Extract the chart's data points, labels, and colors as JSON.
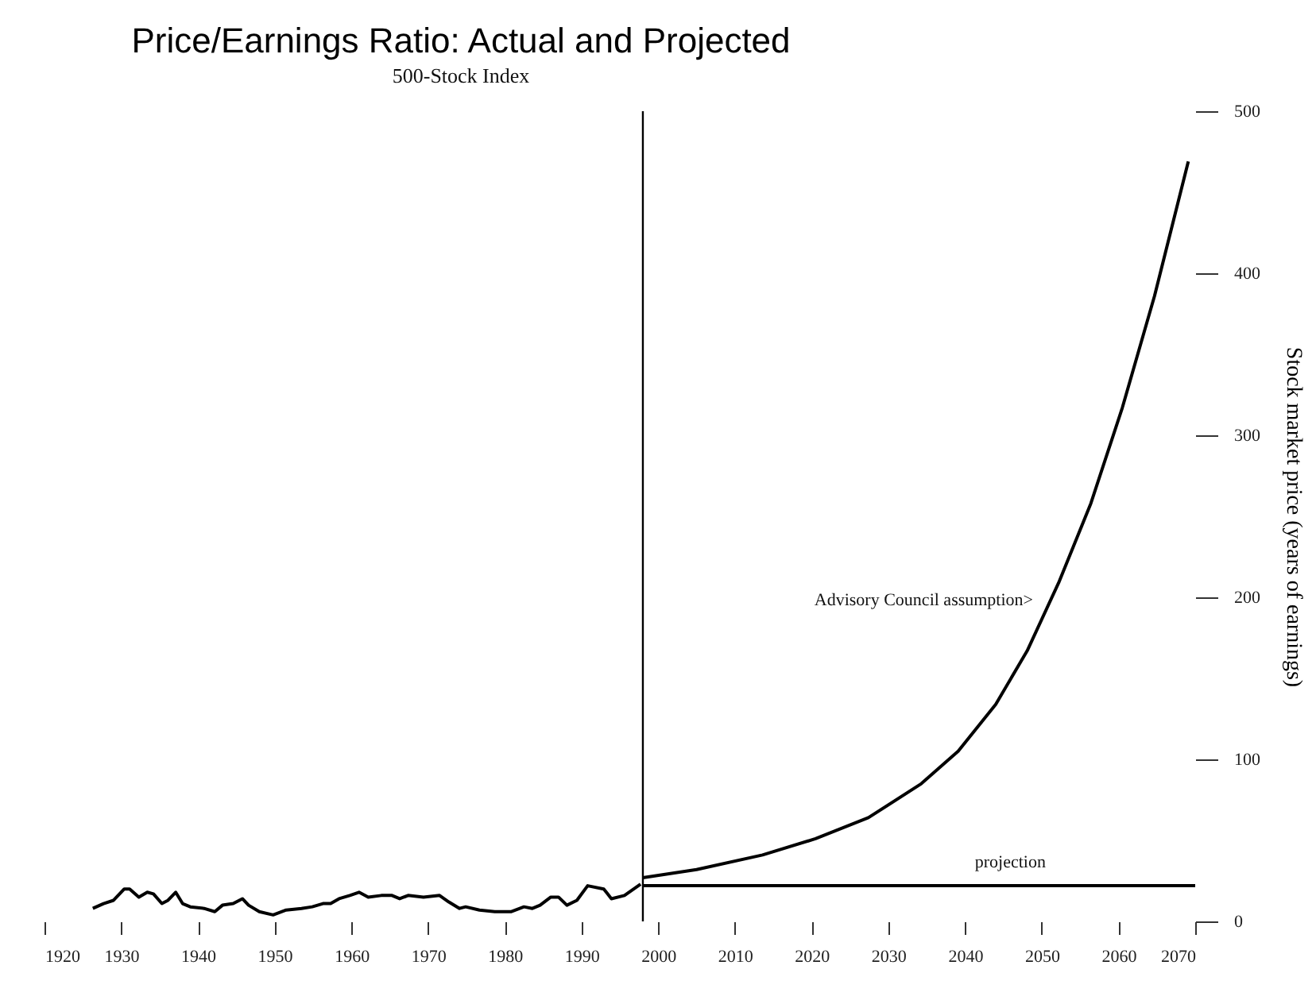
{
  "chart_data": {
    "type": "line",
    "title": "Price/Earnings Ratio: Actual and Projected",
    "subtitle": "500-Stock Index",
    "ylabel": "Stock market price (years of earnings)",
    "xlim": [
      1920,
      2070
    ],
    "xticks": [
      1920,
      1930,
      1940,
      1950,
      1960,
      1970,
      1980,
      1990,
      2000,
      2010,
      2020,
      2030,
      2040,
      2050,
      2060,
      2070
    ],
    "ylim": [
      0,
      500
    ],
    "yticks": [
      0,
      100,
      200,
      300,
      400,
      500
    ],
    "grid": false,
    "marker": "none",
    "line_style": "solid",
    "series": [
      {
        "color": "#000000",
        "x": [
          1926.3,
          1927.7,
          1929.0,
          1930.4,
          1931.1,
          1932.3,
          1933.4,
          1934.2,
          1935.3,
          1936.1,
          1937.1,
          1938.0,
          1939.0,
          1940.8,
          1942.2,
          1943.2,
          1944.6,
          1945.8,
          1946.6,
          1948.0,
          1949.8,
          1951.5,
          1953.5,
          1954.9,
          1956.3,
          1957.3,
          1958.4,
          1959.8,
          1961.0,
          1962.2,
          1963.9,
          1965.3,
          1966.3,
          1967.4,
          1969.4,
          1971.5,
          1972.7,
          1974.1,
          1974.9,
          1976.7,
          1978.7,
          1980.8,
          1982.5,
          1983.6,
          1984.6,
          1986.0,
          1987.0,
          1988.1,
          1989.4,
          1990.8,
          1992.9,
          1993.9,
          1995.6,
          1997.7
        ],
        "values": [
          8,
          11,
          13,
          20,
          20,
          15,
          18,
          17,
          11,
          13,
          18,
          11,
          9,
          8,
          6,
          10,
          11,
          14,
          10,
          6,
          4,
          7,
          8,
          9,
          11,
          11,
          14,
          16,
          18,
          15,
          16,
          16,
          14,
          16,
          15,
          16,
          12,
          8,
          9,
          7,
          6,
          6,
          9,
          8,
          10,
          15,
          15,
          10,
          13,
          22,
          20,
          14,
          16,
          23
        ]
      },
      {
        "color": "#000000",
        "x": [
          1998,
          2005,
          2013.6,
          2020.5,
          2027.4,
          2034.3,
          2039.1,
          2044.0,
          2048.1,
          2052.2,
          2056.4,
          2060.5,
          2064.7,
          2069.1
        ],
        "values": [
          27,
          32,
          41,
          51,
          64,
          85,
          105,
          134,
          167,
          209,
          258,
          317,
          386,
          469
        ]
      },
      {
        "color": "#000000",
        "x": [
          1998,
          2070
        ],
        "values": [
          22,
          22
        ]
      }
    ],
    "ref_lines": [
      {
        "axis": "x",
        "value": 1998,
        "color": "#000000"
      }
    ],
    "annotations": [
      "Advisory Council assumption>",
      "projection"
    ]
  }
}
